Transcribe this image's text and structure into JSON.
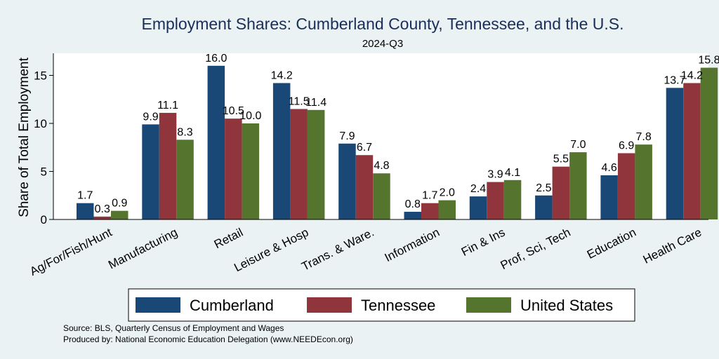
{
  "chart_data": {
    "type": "bar",
    "title": "Employment Shares: Cumberland County, Tennessee, and the U.S.",
    "subtitle": "2024-Q3",
    "xlabel": "",
    "ylabel": "Share of Total Employment",
    "ylim": [
      0,
      17.3
    ],
    "yticks": [
      0,
      5,
      10,
      15
    ],
    "grid": false,
    "legend_position": "bottom",
    "categories": [
      "Ag/For/Fish/Hunt",
      "Manufacturing",
      "Retail",
      "Leisure & Hosp",
      "Trans. & Ware.",
      "Information",
      "Fin & Ins",
      "Prof, Sci, Tech",
      "Education",
      "Health Care"
    ],
    "series": [
      {
        "name": "Cumberland",
        "color": "#1a4876",
        "values": [
          1.7,
          9.9,
          16.0,
          14.2,
          7.9,
          0.8,
          2.4,
          2.5,
          4.6,
          13.7
        ],
        "labels": [
          "1.7",
          "9.9",
          "16.0",
          "14.2",
          "7.9",
          "0.8",
          "2.4",
          "2.5",
          "4.6",
          "13.7"
        ]
      },
      {
        "name": "Tennessee",
        "color": "#90353b",
        "values": [
          0.3,
          11.1,
          10.5,
          11.5,
          6.7,
          1.7,
          3.9,
          5.5,
          6.9,
          14.2
        ],
        "labels": [
          "0.3",
          "11.1",
          "10.5",
          "11.5",
          "6.7",
          "1.7",
          "3.9",
          "5.5",
          "6.9",
          "14.2"
        ]
      },
      {
        "name": "United States",
        "color": "#55752f",
        "values": [
          0.9,
          8.3,
          10.0,
          11.4,
          4.8,
          2.0,
          4.1,
          7.0,
          7.8,
          15.8
        ],
        "labels": [
          "0.9",
          "8.3",
          "10.0",
          "11.4",
          "4.8",
          "2.0",
          "4.1",
          "7.0",
          "7.8",
          "15.8"
        ]
      }
    ]
  },
  "notes": {
    "source": "Source: BLS, Quarterly Census of Employment and Wages",
    "produced_by": "Produced by: National Economic Education Delegation (www.NEEDEcon.org)"
  }
}
